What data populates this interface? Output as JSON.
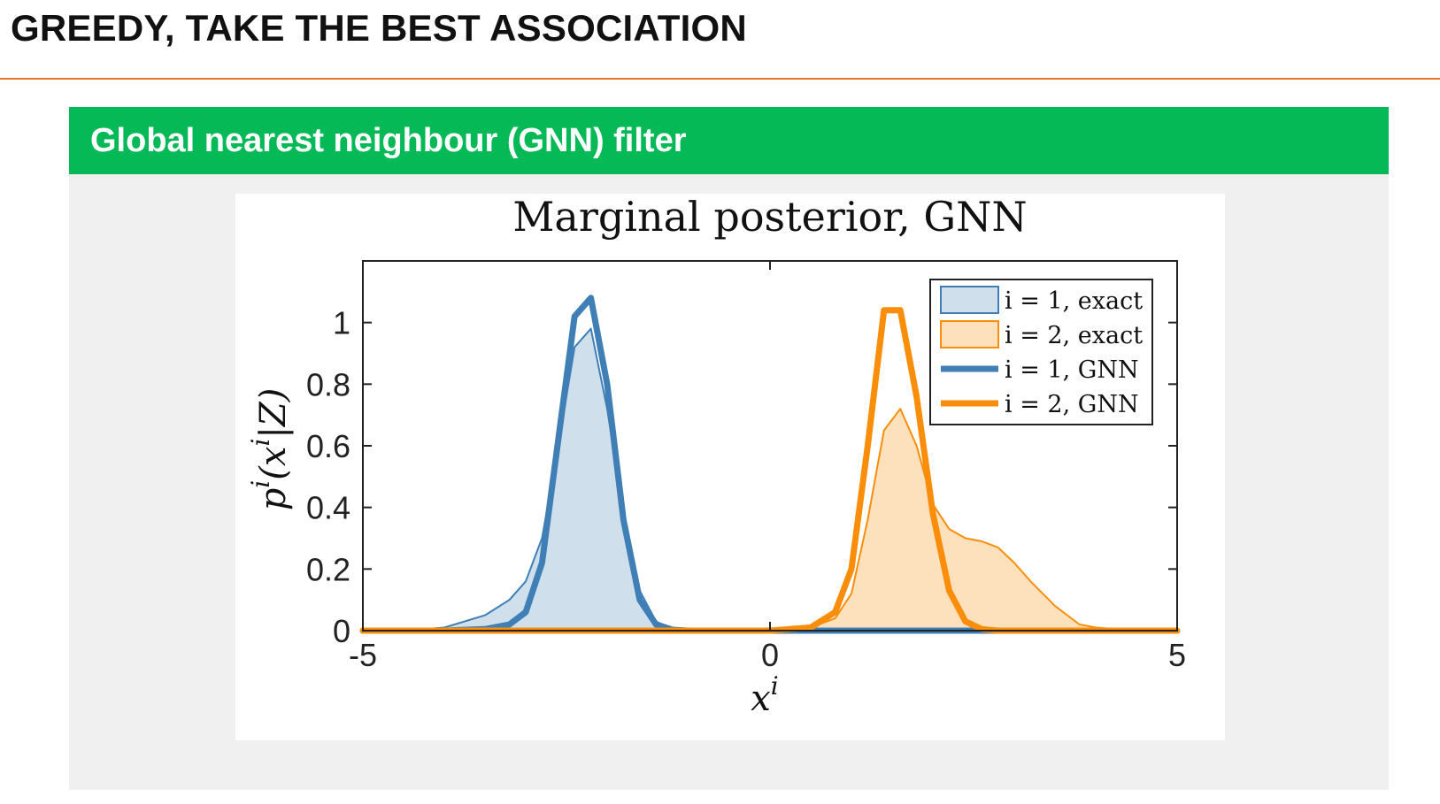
{
  "slide": {
    "title": "GREEDY, TAKE THE BEST ASSOCIATION",
    "block_title": "Global nearest neighbour (GNN) filter"
  },
  "colors": {
    "accent_rule": "#e8762b",
    "block_header": "#05b957",
    "block_body": "#f0f0f0",
    "blue": "#3f7fb6",
    "blue_fill": "#cfdfec",
    "orange": "#fa8e0a",
    "orange_fill": "#fde1bd"
  },
  "chart_data": {
    "type": "area",
    "title": "Marginal posterior, GNN",
    "xlabel": "x^i",
    "ylabel": "p^i(x^i|Z)",
    "xlim": [
      -5,
      5
    ],
    "ylim": [
      0,
      1.2
    ],
    "xticks": [
      -5,
      0,
      5
    ],
    "xtick_labels": [
      "-5",
      "0",
      "5"
    ],
    "yticks": [
      0,
      0.2,
      0.4,
      0.6,
      0.8,
      1
    ],
    "ytick_labels": [
      "0",
      "0.2",
      "0.4",
      "0.6",
      "0.8",
      "1"
    ],
    "grid": false,
    "legend_position": "top-right",
    "x": [
      -5,
      -4.5,
      -4,
      -3.5,
      -3.2,
      -3,
      -2.8,
      -2.6,
      -2.4,
      -2.2,
      -2,
      -1.8,
      -1.6,
      -1.4,
      -1.2,
      -1,
      -0.5,
      0,
      0.5,
      0.8,
      1,
      1.2,
      1.4,
      1.6,
      1.8,
      2,
      2.2,
      2.4,
      2.6,
      2.8,
      3,
      3.2,
      3.5,
      3.8,
      4,
      4.5,
      5
    ],
    "series": [
      {
        "name": "i = 1, exact",
        "style": "filled",
        "color": "#3f7fb6",
        "fill": "#cfdfec",
        "values": [
          0,
          0,
          0.01,
          0.05,
          0.1,
          0.16,
          0.3,
          0.6,
          0.92,
          0.98,
          0.72,
          0.38,
          0.13,
          0.03,
          0.005,
          0,
          0,
          0,
          0,
          0,
          0,
          0,
          0,
          0,
          0,
          0,
          0,
          0,
          0,
          0,
          0,
          0,
          0,
          0,
          0,
          0,
          0
        ]
      },
      {
        "name": "i = 2, exact",
        "style": "filled",
        "color": "#fa8e0a",
        "fill": "#fde1bd",
        "values": [
          0,
          0,
          0,
          0,
          0,
          0,
          0,
          0,
          0,
          0,
          0,
          0,
          0,
          0,
          0,
          0,
          0,
          0,
          0.01,
          0.04,
          0.12,
          0.36,
          0.65,
          0.72,
          0.6,
          0.41,
          0.33,
          0.3,
          0.29,
          0.27,
          0.22,
          0.16,
          0.08,
          0.02,
          0.01,
          0,
          0
        ]
      },
      {
        "name": "i = 1, GNN",
        "style": "line",
        "color": "#3f7fb6",
        "values": [
          0,
          0,
          0,
          0.005,
          0.02,
          0.06,
          0.22,
          0.62,
          1.02,
          1.08,
          0.8,
          0.36,
          0.1,
          0.02,
          0.003,
          0,
          0,
          0,
          0,
          0,
          0,
          0,
          0,
          0,
          0,
          0,
          0,
          0,
          0,
          0,
          0,
          0,
          0,
          0,
          0,
          0,
          0
        ]
      },
      {
        "name": "i = 2, GNN",
        "style": "line",
        "color": "#fa8e0a",
        "values": [
          0,
          0,
          0,
          0,
          0,
          0,
          0,
          0,
          0,
          0,
          0,
          0,
          0,
          0,
          0,
          0,
          0,
          0,
          0.01,
          0.06,
          0.2,
          0.6,
          1.04,
          1.04,
          0.76,
          0.38,
          0.13,
          0.03,
          0.005,
          0,
          0,
          0,
          0,
          0,
          0,
          0,
          0
        ]
      }
    ]
  }
}
